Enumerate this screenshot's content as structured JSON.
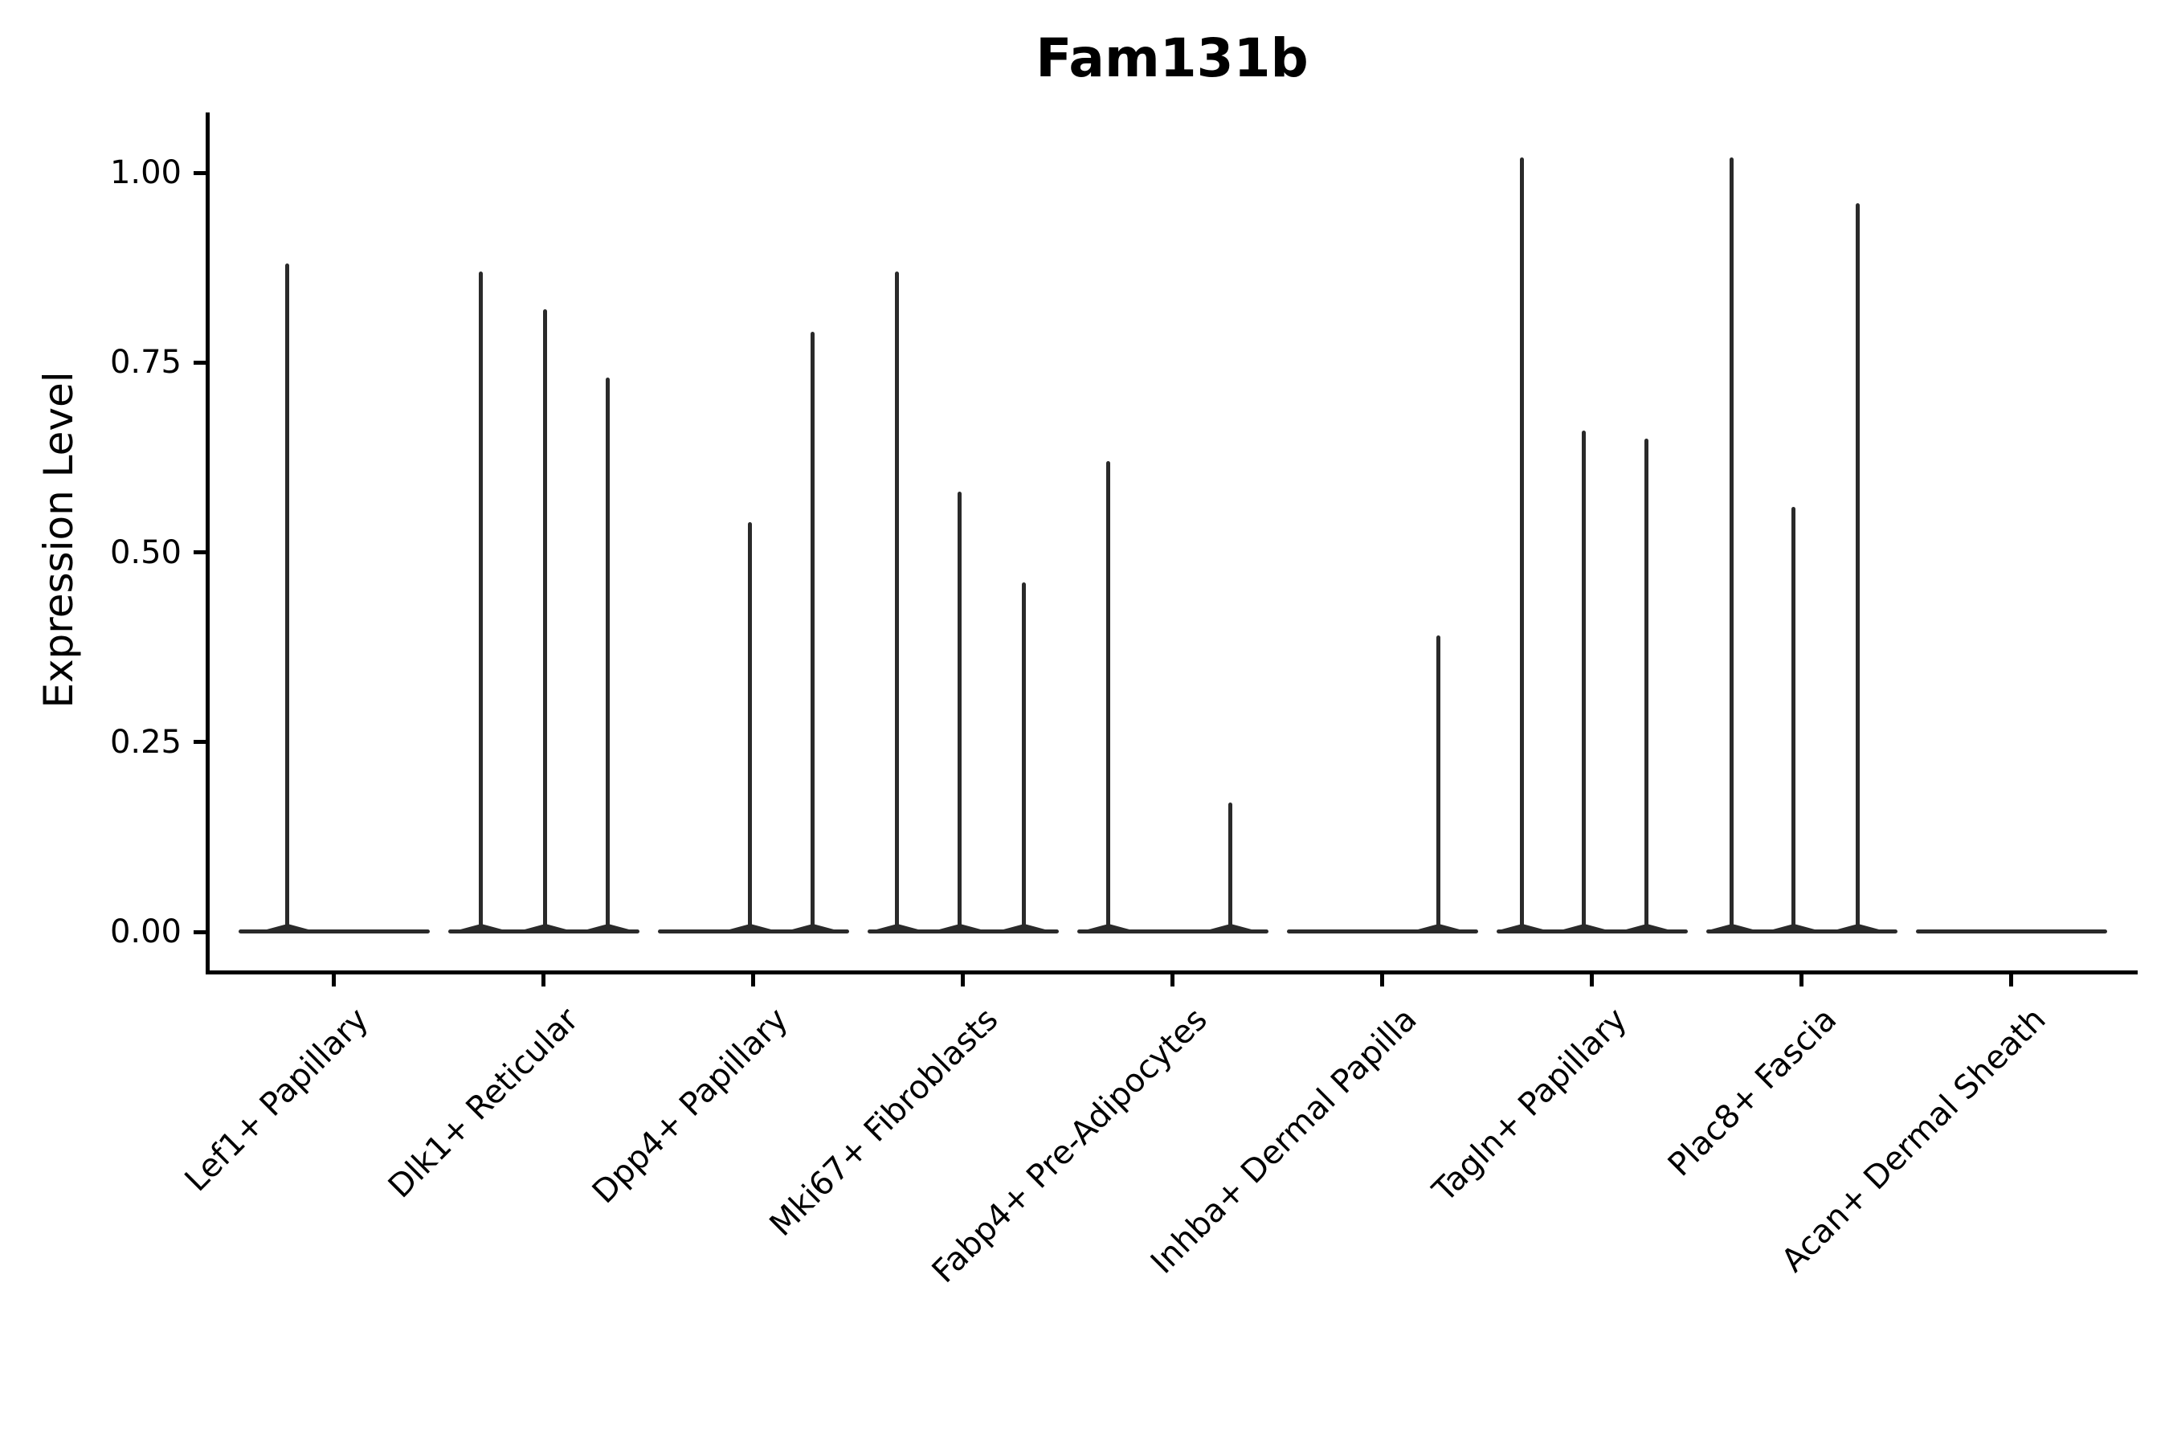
{
  "chart_data": {
    "type": "violin",
    "title": "Fam131b",
    "ylabel": "Expression Level",
    "xlabel": "",
    "ylim": [
      0,
      1.08
    ],
    "grid": false,
    "legend": "none",
    "y_ticks": [
      0.0,
      0.25,
      0.5,
      0.75,
      1.0
    ],
    "y_tick_labels": [
      "0.00",
      "0.25",
      "0.50",
      "0.75",
      "1.00"
    ],
    "categories": [
      "Lef1+ Papillary",
      "Dlk1+ Reticular",
      "Dpp4+ Papillary",
      "Mki67+ Fibroblasts",
      "Fabp4+ Pre-Adipocytes",
      "Inhba+ Dermal Papilla",
      "Tagln+ Papillary",
      "Plac8+ Fascia",
      "Acan+ Dermal Sheath"
    ],
    "series": [
      {
        "category": "Lef1+ Papillary",
        "spikes": [
          {
            "dx": -58,
            "max": 0.88
          }
        ]
      },
      {
        "category": "Dlk1+ Reticular",
        "spikes": [
          {
            "dx": -78,
            "max": 0.87
          },
          {
            "dx": 2,
            "max": 0.82
          },
          {
            "dx": 80,
            "max": 0.73
          }
        ]
      },
      {
        "category": "Dpp4+ Papillary",
        "spikes": [
          {
            "dx": -4,
            "max": 0.54
          },
          {
            "dx": 74,
            "max": 0.79
          }
        ]
      },
      {
        "category": "Mki67+ Fibroblasts",
        "spikes": [
          {
            "dx": -82,
            "max": 0.87
          },
          {
            "dx": -4,
            "max": 0.58
          },
          {
            "dx": 76,
            "max": 0.46
          }
        ]
      },
      {
        "category": "Fabp4+ Pre-Adipocytes",
        "spikes": [
          {
            "dx": -80,
            "max": 0.62
          },
          {
            "dx": 72,
            "max": 0.17
          }
        ]
      },
      {
        "category": "Inhba+ Dermal Papilla",
        "spikes": [
          {
            "dx": 70,
            "max": 0.39
          }
        ]
      },
      {
        "category": "Tagln+ Papillary",
        "spikes": [
          {
            "dx": -87,
            "max": 1.02
          },
          {
            "dx": -10,
            "max": 0.66
          },
          {
            "dx": 68,
            "max": 0.65
          }
        ]
      },
      {
        "category": "Plac8+ Fascia",
        "spikes": [
          {
            "dx": -87,
            "max": 1.02
          },
          {
            "dx": -10,
            "max": 0.56
          },
          {
            "dx": 70,
            "max": 0.96
          }
        ]
      },
      {
        "category": "Acan+ Dermal Sheath",
        "spikes": []
      }
    ],
    "colors": {
      "violin_stroke": "#2a2a2a",
      "axis": "#000000",
      "text": "#000000",
      "background": "#ffffff"
    }
  }
}
